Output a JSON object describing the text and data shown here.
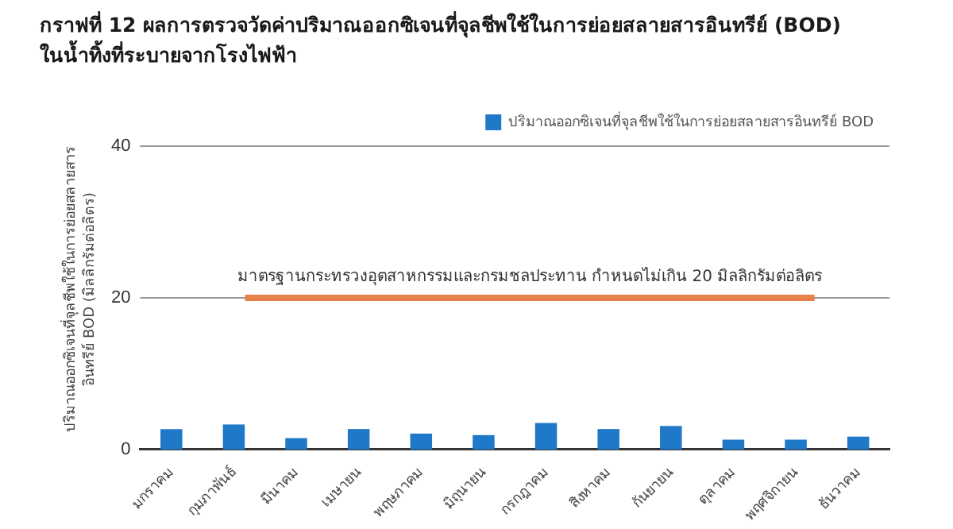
{
  "chart_data": {
    "type": "bar",
    "title": "กราฟที่ 12 ผลการตรวจวัดค่าปริมาณออกซิเจนที่จุลชีพใช้ในการย่อยสลายสารอินทรีย์ (BOD) ในน้ำทิ้งที่ระบายจากโรงไฟฟ้า",
    "ylabel": "ปริมาณออกซิเจนที่จุลชีพใช้ในการย่อยสลายสารอินทรีย์ BOD (มิลลิกรัมต่อลิตร)",
    "categories": [
      "มกราคม",
      "กุมภาพันธ์",
      "มีนาคม",
      "เมษายน",
      "พฤษภาคม",
      "มิถุนายน",
      "กรกฎาคม",
      "สิงหาคม",
      "กันยายน",
      "ตุลาคม",
      "พฤศจิกายน",
      "ธันวาคม"
    ],
    "series": [
      {
        "name": "ปริมาณออกซิเจนที่จุลชีพใช้ในการย่อยสลายสารอินทรีย์ BOD",
        "color": "#1f78c8",
        "values": [
          2.7,
          3.3,
          1.5,
          2.7,
          2.1,
          1.9,
          3.5,
          2.7,
          3.1,
          1.3,
          1.3,
          1.7
        ]
      }
    ],
    "ylim": [
      0,
      40
    ],
    "yticks": [
      0,
      20,
      40
    ],
    "legend": "top right",
    "ref_lines": [
      {
        "axis": "y",
        "value": 20,
        "color": "#999999"
      },
      {
        "axis": "y",
        "value": 20,
        "label": "มาตรฐานกระทรวงอุตสาหกรรมและกรมชลประทาน กำหนดไม่เกิน 20 มิลลิกรัมต่อลิตร",
        "color": "#e8804a"
      }
    ]
  }
}
